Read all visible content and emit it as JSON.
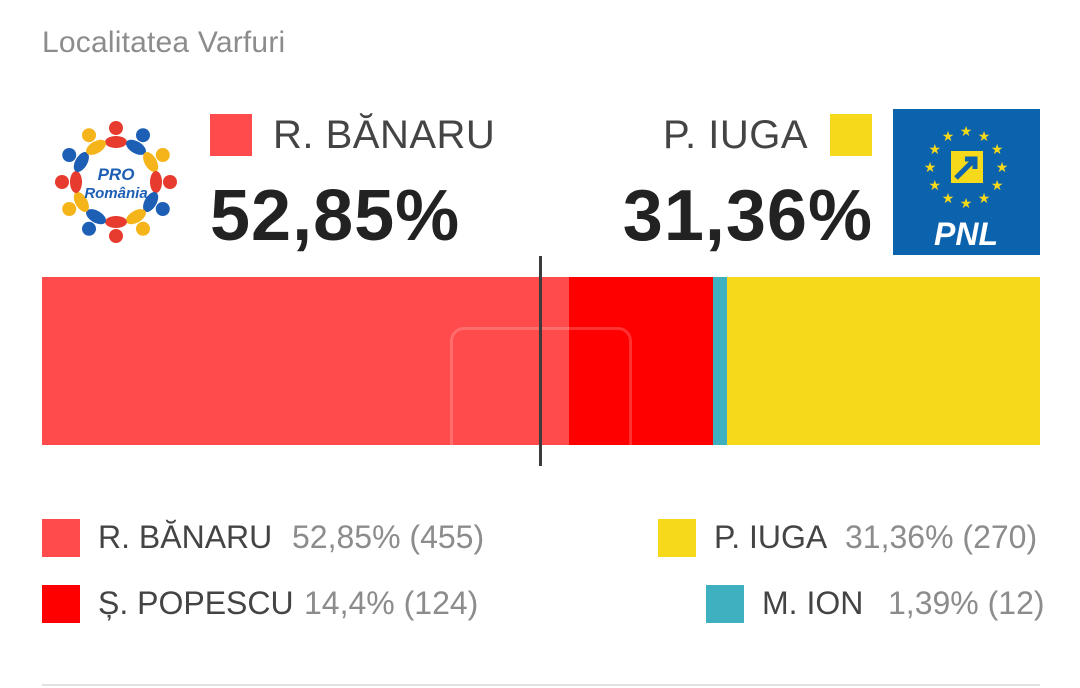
{
  "title": "Localitatea Varfuri",
  "headline": {
    "left": {
      "name": "R. BĂNARU",
      "percent": "52,85%",
      "color": "#ff4b4b"
    },
    "right": {
      "name": "P. IUGA",
      "percent": "31,36%",
      "color": "#f5d91a"
    }
  },
  "logos": {
    "left": {
      "icon": "pro-romania-logo",
      "line1": "PRO",
      "line2": "România"
    },
    "right": {
      "icon": "pnl-logo",
      "text": "PNL"
    }
  },
  "chart_data": {
    "type": "bar",
    "orientation": "horizontal-stacked",
    "unit": "%",
    "series": [
      {
        "name": "R. BĂNARU",
        "value": 52.85,
        "votes": 455,
        "color": "#ff4b4b"
      },
      {
        "name": "Ș. POPESCU",
        "value": 14.4,
        "votes": 124,
        "color": "#ff0000"
      },
      {
        "name": "M. ION",
        "value": 1.39,
        "votes": 12,
        "color": "#3fb0c0"
      },
      {
        "name": "P. IUGA",
        "value": 31.36,
        "votes": 270,
        "color": "#f5d91a"
      }
    ],
    "midline_at": 50
  },
  "legend": [
    {
      "name": "R. BĂNARU",
      "value": "52,85% (455)",
      "color": "#ff4b4b"
    },
    {
      "name": "P. IUGA",
      "value": "31,36% (270)",
      "color": "#f5d91a"
    },
    {
      "name": "Ș. POPESCU",
      "value": "14,4% (124)",
      "color": "#ff0000"
    },
    {
      "name": "M. ION",
      "value": "1,39% (12)",
      "color": "#3fb0c0"
    }
  ]
}
